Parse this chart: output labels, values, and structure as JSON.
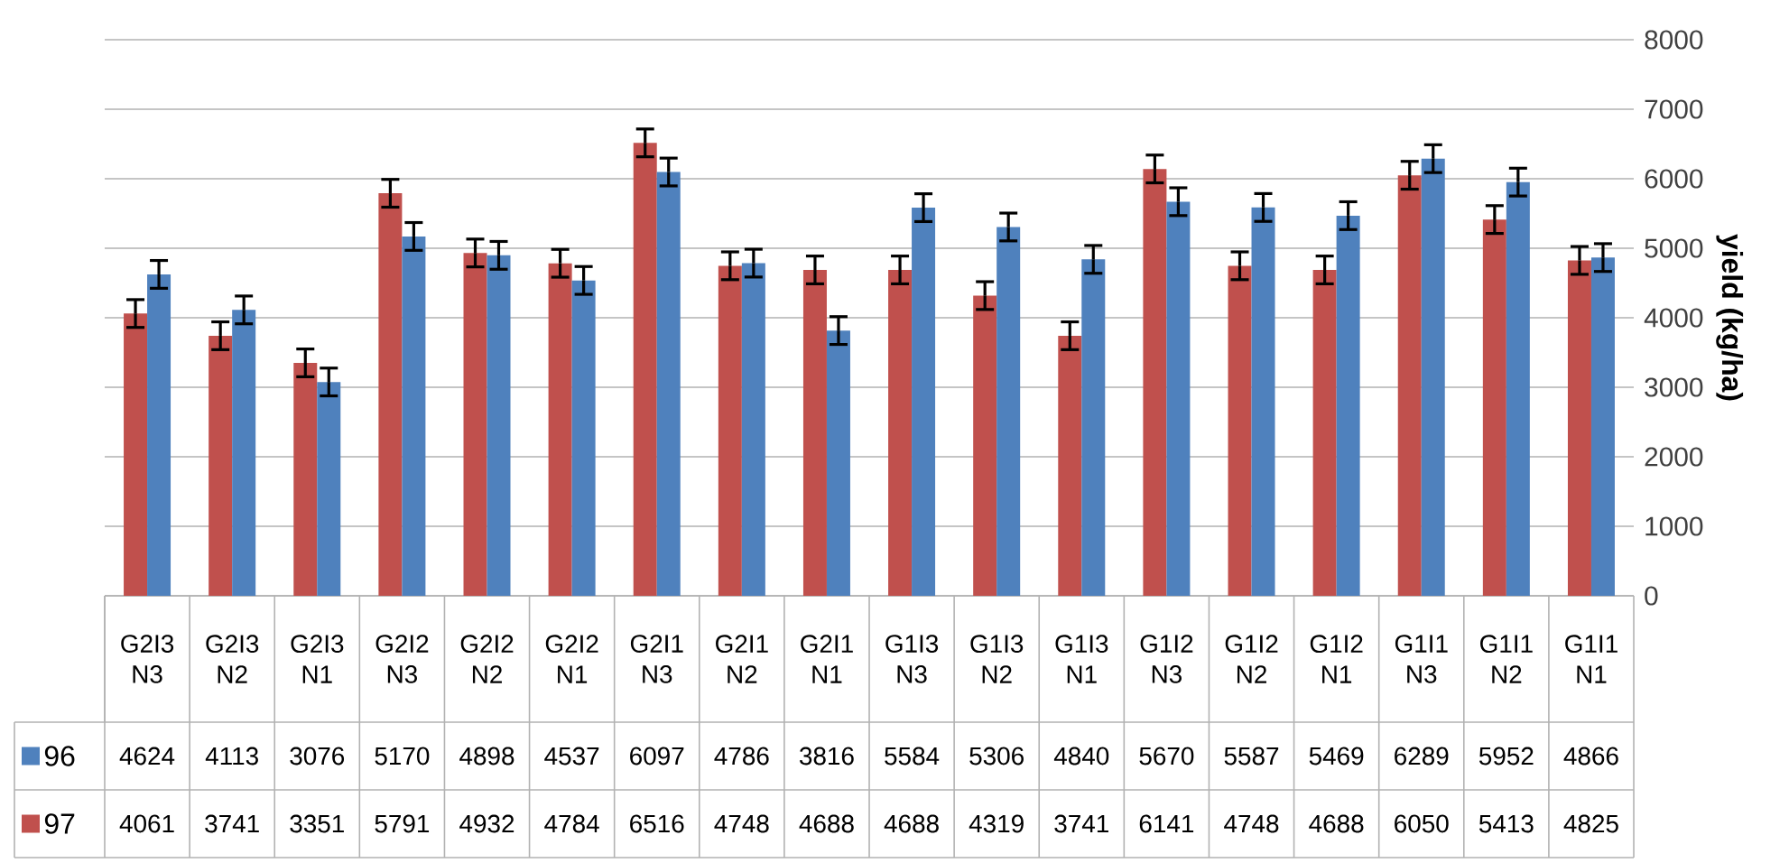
{
  "chart_data": {
    "type": "bar",
    "ylabel": "yield (kg/ha)",
    "categories": [
      "G2I3 N3",
      "G2I3 N2",
      "G2I3 N1",
      "G2I2 N3",
      "G2I2 N2",
      "G2I2 N1",
      "G2I1 N3",
      "G2I1 N2",
      "G2I1 N1",
      "G1I3 N3",
      "G1I3 N2",
      "G1I3 N1",
      "G1I2 N3",
      "G1I2 N2",
      "G1I2 N1",
      "G1I1 N3",
      "G1I1 N2",
      "G1I1 N1"
    ],
    "series": [
      {
        "name": "96",
        "color": "#4f81bd",
        "values": [
          4624,
          4113,
          3076,
          5170,
          4898,
          4537,
          6097,
          4786,
          3816,
          5584,
          5306,
          4840,
          5670,
          5587,
          5469,
          6289,
          5952,
          4866
        ],
        "errors": [
          200,
          200,
          200,
          200,
          200,
          200,
          200,
          200,
          200,
          200,
          200,
          200,
          200,
          200,
          200,
          200,
          200,
          200
        ]
      },
      {
        "name": "97",
        "color": "#c0504d",
        "values": [
          4061,
          3741,
          3351,
          5791,
          4932,
          4784,
          6516,
          4748,
          4688,
          4688,
          4319,
          3741,
          6141,
          4748,
          4688,
          6050,
          5413,
          4825
        ],
        "errors": [
          200,
          200,
          200,
          200,
          200,
          200,
          200,
          200,
          200,
          200,
          200,
          200,
          200,
          200,
          200,
          200,
          200,
          200
        ]
      }
    ],
    "ylim": [
      0,
      8000
    ],
    "yticks": [
      0,
      1000,
      2000,
      3000,
      4000,
      5000,
      6000,
      7000,
      8000
    ],
    "grid": "y",
    "legend": "bottom left",
    "data_labels": true
  }
}
